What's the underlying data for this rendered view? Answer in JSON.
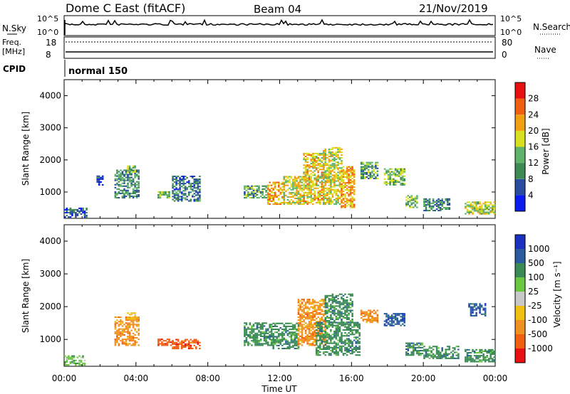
{
  "header": {
    "station": "Dome C East (fitACF)",
    "beam": "Beam 04",
    "date": "21/Nov/2019"
  },
  "top_panels": {
    "nsky_label": "N.Sky",
    "nsky_ticks": [
      "10^5",
      "10^0"
    ],
    "nsearch_label": "N.Search",
    "nsearch_ticks": [
      "10^5",
      "10^0"
    ],
    "freq_label": "Freq.",
    "freq_unit": "[MHz]",
    "freq_ticks": [
      "18",
      "8"
    ],
    "nave_label": "Nave",
    "nave_ticks": [
      "80",
      "0"
    ],
    "cpid_label": "CPID",
    "cpid_value": "normal 150"
  },
  "colors": {
    "power": [
      "#0b1cf0",
      "#2a4ca0",
      "#3d8a55",
      "#5fb36b",
      "#d8e020",
      "#f0a010",
      "#f06010",
      "#e81010"
    ],
    "velocity": [
      "#1a30c0",
      "#2a5aa0",
      "#3a8a55",
      "#6ac840",
      "#c8c8c8",
      "#f0c010",
      "#f09020",
      "#f06010",
      "#e81010"
    ]
  },
  "chart_data": [
    {
      "type": "heatmap",
      "name": "power-panel",
      "ylabel": "Slant Range [km]",
      "y_ticks": [
        "4000",
        "3000",
        "2000",
        "1000"
      ],
      "ylim": [
        180,
        4500
      ],
      "xlim": [
        0,
        24
      ],
      "colorbar": {
        "label": "Power [dB]",
        "ticks": [
          "28",
          "24",
          "20",
          "16",
          "12",
          "8",
          "4"
        ],
        "range": [
          0,
          32
        ]
      },
      "blobs": [
        {
          "t0": 0.0,
          "t1": 1.3,
          "r0": 200,
          "r1": 500,
          "v": 6
        },
        {
          "t0": 1.8,
          "t1": 2.2,
          "r0": 1200,
          "r1": 1500,
          "v": 4
        },
        {
          "t0": 2.8,
          "t1": 4.2,
          "r0": 800,
          "r1": 1700,
          "v": 10
        },
        {
          "t0": 3.5,
          "t1": 4.0,
          "r0": 1600,
          "r1": 1800,
          "v": 14
        },
        {
          "t0": 5.2,
          "t1": 5.8,
          "r0": 800,
          "r1": 1000,
          "v": 14
        },
        {
          "t0": 6.0,
          "t1": 7.5,
          "r0": 700,
          "r1": 1500,
          "v": 8
        },
        {
          "t0": 10.0,
          "t1": 11.2,
          "r0": 800,
          "r1": 1200,
          "v": 12
        },
        {
          "t0": 11.3,
          "t1": 12.2,
          "r0": 600,
          "r1": 1300,
          "v": 22
        },
        {
          "t0": 12.2,
          "t1": 13.3,
          "r0": 600,
          "r1": 1500,
          "v": 18
        },
        {
          "t0": 13.3,
          "t1": 14.4,
          "r0": 600,
          "r1": 2200,
          "v": 20
        },
        {
          "t0": 14.4,
          "t1": 15.4,
          "r0": 600,
          "r1": 2400,
          "v": 18
        },
        {
          "t0": 15.4,
          "t1": 16.2,
          "r0": 500,
          "r1": 1800,
          "v": 22
        },
        {
          "t0": 16.5,
          "t1": 17.5,
          "r0": 1400,
          "r1": 1900,
          "v": 12
        },
        {
          "t0": 17.8,
          "t1": 19.0,
          "r0": 1200,
          "r1": 1700,
          "v": 14
        },
        {
          "t0": 19.0,
          "t1": 19.7,
          "r0": 500,
          "r1": 900,
          "v": 14
        },
        {
          "t0": 20.0,
          "t1": 21.5,
          "r0": 400,
          "r1": 800,
          "v": 10
        },
        {
          "t0": 22.3,
          "t1": 24.0,
          "r0": 300,
          "r1": 700,
          "v": 16
        }
      ]
    },
    {
      "type": "heatmap",
      "name": "velocity-panel",
      "ylabel": "Slant Range [km]",
      "y_ticks": [
        "4000",
        "3000",
        "2000",
        "1000"
      ],
      "ylim": [
        180,
        4500
      ],
      "xlim": [
        0,
        24
      ],
      "xlabel": "Time UT",
      "x_ticks": [
        "00:00",
        "04:00",
        "08:00",
        "12:00",
        "16:00",
        "20:00",
        "00:00"
      ],
      "colorbar": {
        "label": "Velocity [m s⁻¹]",
        "ticks": [
          "1000",
          "500",
          "100",
          "25",
          "-25",
          "-100",
          "-500",
          "-1000"
        ]
      },
      "blobs": [
        {
          "t0": 0.0,
          "t1": 1.2,
          "r0": 200,
          "r1": 500,
          "c": 3
        },
        {
          "t0": 2.8,
          "t1": 4.2,
          "r0": 800,
          "r1": 1700,
          "c": 6
        },
        {
          "t0": 3.5,
          "t1": 4.0,
          "r0": 1600,
          "r1": 1800,
          "c": 5
        },
        {
          "t0": 5.2,
          "t1": 6.0,
          "r0": 800,
          "r1": 1000,
          "c": 7
        },
        {
          "t0": 6.0,
          "t1": 7.5,
          "r0": 700,
          "r1": 1000,
          "c": 7
        },
        {
          "t0": 10.0,
          "t1": 11.5,
          "r0": 800,
          "r1": 1500,
          "c": 2
        },
        {
          "t0": 11.5,
          "t1": 13.0,
          "r0": 700,
          "r1": 1500,
          "c": 2
        },
        {
          "t0": 13.0,
          "t1": 14.5,
          "r0": 800,
          "r1": 2200,
          "c": 6
        },
        {
          "t0": 14.0,
          "t1": 16.5,
          "r0": 500,
          "r1": 1500,
          "c": 2
        },
        {
          "t0": 14.5,
          "t1": 16.0,
          "r0": 1500,
          "r1": 2400,
          "c": 2
        },
        {
          "t0": 16.5,
          "t1": 17.5,
          "r0": 1500,
          "r1": 1900,
          "c": 6
        },
        {
          "t0": 17.8,
          "t1": 19.0,
          "r0": 1400,
          "r1": 1800,
          "c": 1
        },
        {
          "t0": 19.0,
          "t1": 20.0,
          "r0": 500,
          "r1": 900,
          "c": 2
        },
        {
          "t0": 20.0,
          "t1": 22.0,
          "r0": 400,
          "r1": 800,
          "c": 2
        },
        {
          "t0": 22.3,
          "t1": 24.0,
          "r0": 300,
          "r1": 700,
          "c": 2
        },
        {
          "t0": 22.5,
          "t1": 23.5,
          "r0": 1700,
          "r1": 2100,
          "c": 1
        }
      ]
    }
  ]
}
